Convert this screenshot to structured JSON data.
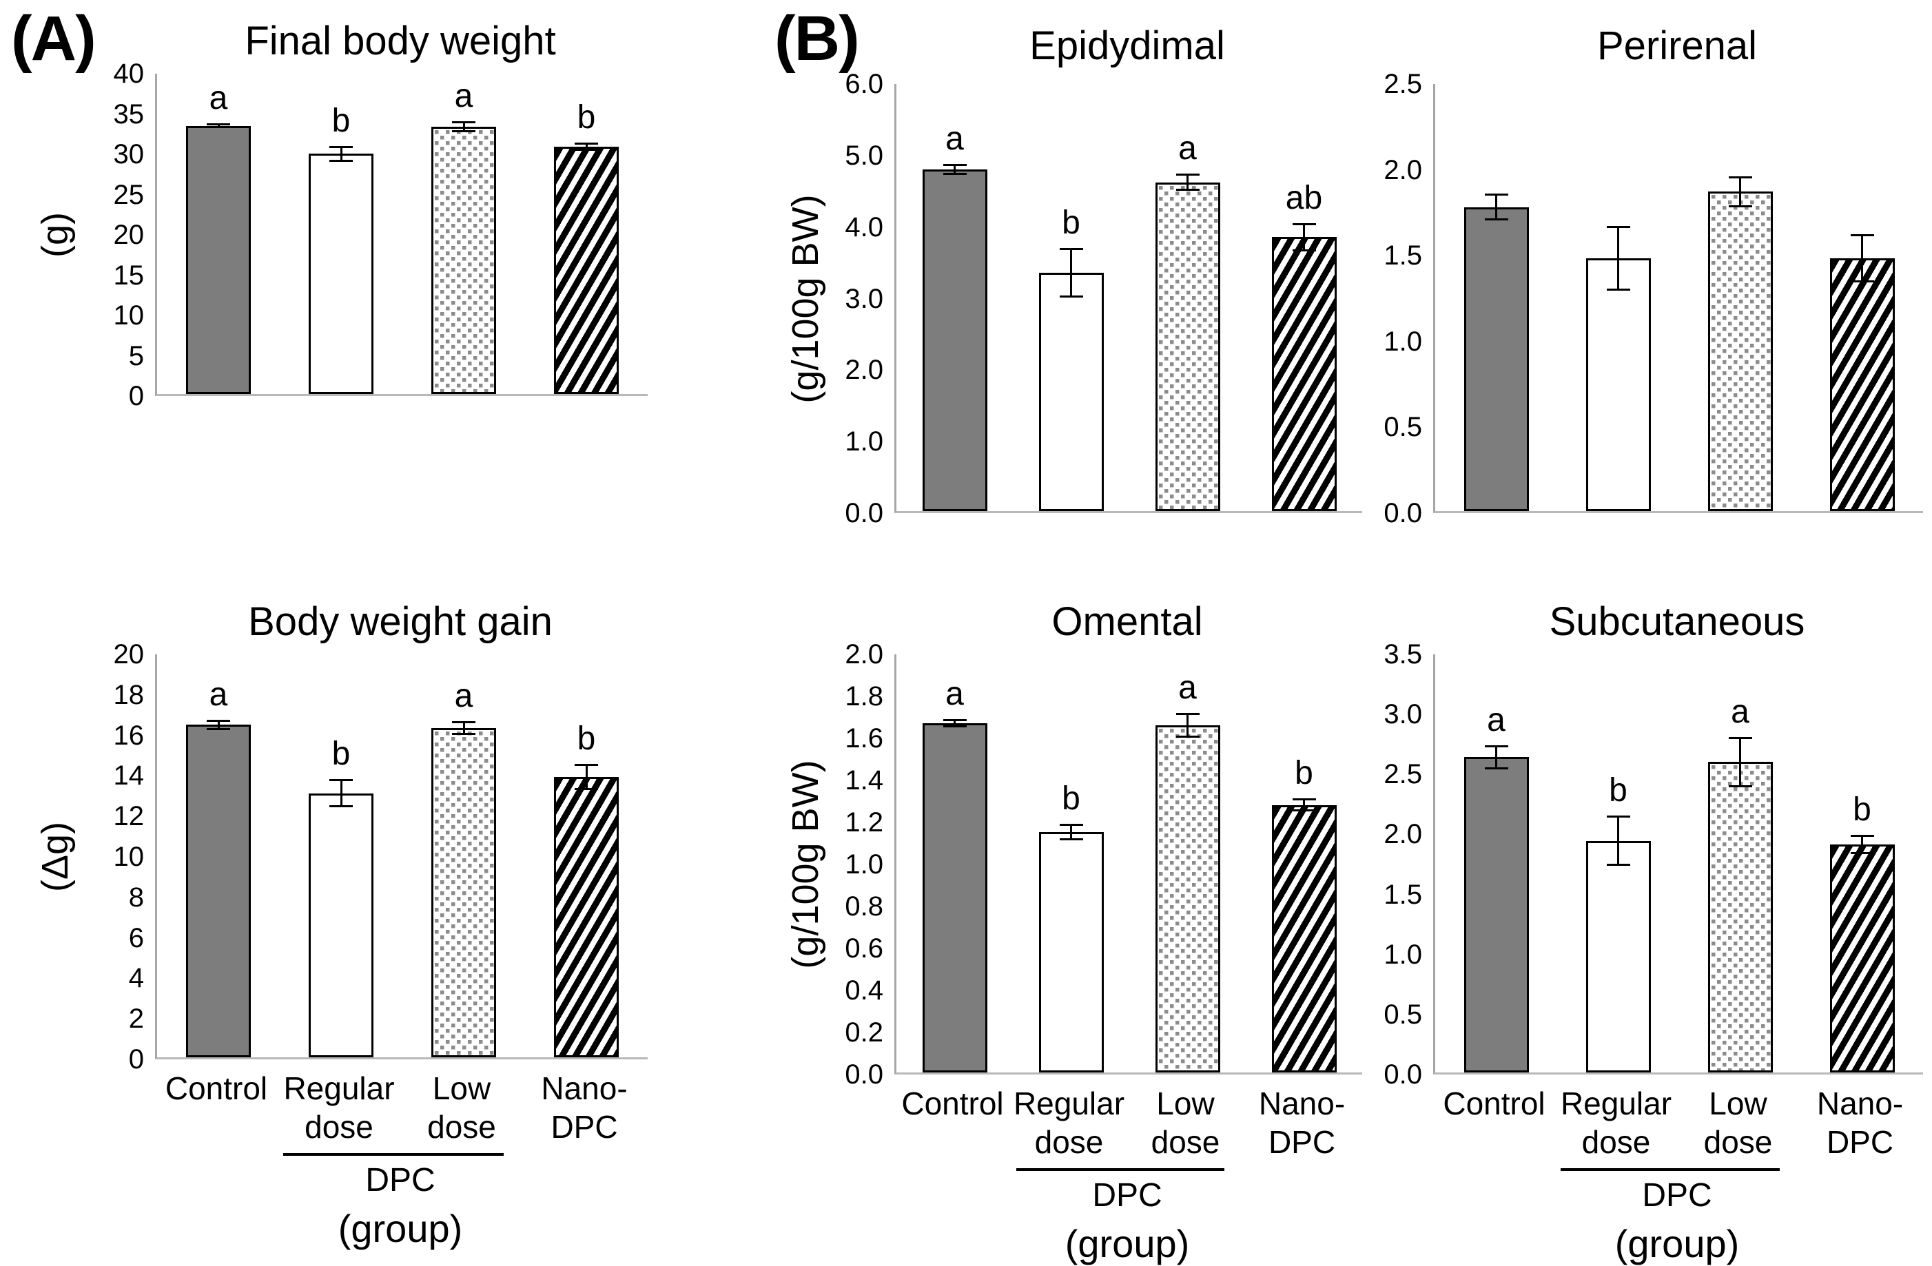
{
  "panels": {
    "a": "(A)",
    "b": "(B)"
  },
  "colors": {
    "bar_gray": "#7d7d7d",
    "dot_gray": "#8c8c8c",
    "stripe_black": "#000000",
    "bar_border": "#000000",
    "axis_line": "#a6a6a6",
    "baseline": "#b8b8b8",
    "text": "#000000"
  },
  "x_axis": {
    "series": [
      {
        "label_lines": [
          "Control"
        ],
        "style": "solid"
      },
      {
        "label_lines": [
          "Regular",
          "dose"
        ],
        "style": "white"
      },
      {
        "label_lines": [
          "Low",
          "dose"
        ],
        "style": "dots"
      },
      {
        "label_lines": [
          "Nano-",
          "DPC"
        ],
        "style": "stripes"
      }
    ],
    "group_bracket_label": "DPC",
    "group_axis_label": "(group)"
  },
  "chart_data": [
    {
      "id": "final-body-weight",
      "type": "bar",
      "title": "Final body weight",
      "ylabel": "(g)",
      "ymax": 40,
      "ytick_values": [
        40,
        35,
        30,
        25,
        20,
        15,
        10,
        5,
        0
      ],
      "ytick_labels": [
        "40",
        "35",
        "30",
        "25",
        "20",
        "15",
        "10",
        "5",
        "0"
      ],
      "show_x_labels": false,
      "categories": [
        "Control",
        "Regular dose",
        "Low dose",
        "Nano-DPC"
      ],
      "bars": [
        {
          "category": "Control",
          "value": 33.5,
          "error": 0.3,
          "letter": "a"
        },
        {
          "category": "Regular dose",
          "value": 30.0,
          "error": 1.0,
          "letter": "b"
        },
        {
          "category": "Low dose",
          "value": 33.4,
          "error": 0.7,
          "letter": "a"
        },
        {
          "category": "Nano-DPC",
          "value": 30.9,
          "error": 0.5,
          "letter": "b"
        }
      ]
    },
    {
      "id": "body-weight-gain",
      "type": "bar",
      "title": "Body weight gain",
      "ylabel": "(Δg)",
      "ymax": 20,
      "ytick_values": [
        20,
        18,
        16,
        14,
        12,
        10,
        8,
        6,
        4,
        2,
        0
      ],
      "ytick_labels": [
        "20",
        "18",
        "16",
        "14",
        "12",
        "10",
        "8",
        "6",
        "4",
        "2",
        "0"
      ],
      "show_x_labels": true,
      "categories": [
        "Control",
        "Regular dose",
        "Low dose",
        "Nano-DPC"
      ],
      "bars": [
        {
          "category": "Control",
          "value": 16.5,
          "error": 0.25,
          "letter": "a"
        },
        {
          "category": "Regular dose",
          "value": 13.1,
          "error": 0.7,
          "letter": "b"
        },
        {
          "category": "Low dose",
          "value": 16.35,
          "error": 0.35,
          "letter": "a"
        },
        {
          "category": "Nano-DPC",
          "value": 13.9,
          "error": 0.65,
          "letter": "b"
        }
      ]
    },
    {
      "id": "epidydimal",
      "type": "bar",
      "title": "Epidydimal",
      "ylabel": "(g/100g BW)",
      "ymax": 6,
      "ytick_values": [
        6,
        5,
        4,
        3,
        2,
        1,
        0
      ],
      "ytick_labels": [
        "6.0",
        "5.0",
        "4.0",
        "3.0",
        "2.0",
        "1.0",
        "0.0"
      ],
      "show_x_labels": false,
      "categories": [
        "Control",
        "Regular dose",
        "Low dose",
        "Nano-DPC"
      ],
      "bars": [
        {
          "category": "Control",
          "value": 4.8,
          "error": 0.08,
          "letter": "a"
        },
        {
          "category": "Regular dose",
          "value": 3.35,
          "error": 0.35,
          "letter": "b"
        },
        {
          "category": "Low dose",
          "value": 4.62,
          "error": 0.12,
          "letter": "a"
        },
        {
          "category": "Nano-DPC",
          "value": 3.85,
          "error": 0.2,
          "letter": "ab"
        }
      ]
    },
    {
      "id": "perirenal",
      "type": "bar",
      "title": "Perirenal",
      "ylabel": "",
      "ymax": 2.5,
      "ytick_values": [
        2.5,
        2.0,
        1.5,
        1.0,
        0.5,
        0
      ],
      "ytick_labels": [
        "2.5",
        "2.0",
        "1.5",
        "1.0",
        "0.5",
        "0.0"
      ],
      "show_x_labels": false,
      "categories": [
        "Control",
        "Regular dose",
        "Low dose",
        "Nano-DPC"
      ],
      "bars": [
        {
          "category": "Control",
          "value": 1.78,
          "error": 0.08,
          "letter": ""
        },
        {
          "category": "Regular dose",
          "value": 1.48,
          "error": 0.19,
          "letter": ""
        },
        {
          "category": "Low dose",
          "value": 1.87,
          "error": 0.09,
          "letter": ""
        },
        {
          "category": "Nano-DPC",
          "value": 1.48,
          "error": 0.14,
          "letter": ""
        }
      ]
    },
    {
      "id": "omental",
      "type": "bar",
      "title": "Omental",
      "ylabel": "(g/100g BW)",
      "ymax": 2,
      "ytick_values": [
        2.0,
        1.8,
        1.6,
        1.4,
        1.2,
        1.0,
        0.8,
        0.6,
        0.4,
        0.2,
        0
      ],
      "ytick_labels": [
        "2.0",
        "1.8",
        "1.6",
        "1.4",
        "1.2",
        "1.0",
        "0.8",
        "0.6",
        "0.4",
        "0.2",
        "0.0"
      ],
      "show_x_labels": true,
      "categories": [
        "Control",
        "Regular dose",
        "Low dose",
        "Nano-DPC"
      ],
      "bars": [
        {
          "category": "Control",
          "value": 1.67,
          "error": 0.02,
          "letter": "a"
        },
        {
          "category": "Regular dose",
          "value": 1.15,
          "error": 0.04,
          "letter": "b"
        },
        {
          "category": "Low dose",
          "value": 1.66,
          "error": 0.06,
          "letter": "a"
        },
        {
          "category": "Nano-DPC",
          "value": 1.28,
          "error": 0.03,
          "letter": "b"
        }
      ]
    },
    {
      "id": "subcutaneous",
      "type": "bar",
      "title": "Subcutaneous",
      "ylabel": "",
      "ymax": 3.5,
      "ytick_values": [
        3.5,
        3.0,
        2.5,
        2.0,
        1.5,
        1.0,
        0.5,
        0
      ],
      "ytick_labels": [
        "3.5",
        "3.0",
        "2.5",
        "2.0",
        "1.5",
        "1.0",
        "0.5",
        "0.0"
      ],
      "show_x_labels": true,
      "categories": [
        "Control",
        "Regular dose",
        "Low dose",
        "Nano-DPC"
      ],
      "bars": [
        {
          "category": "Control",
          "value": 2.64,
          "error": 0.1,
          "letter": "a"
        },
        {
          "category": "Regular dose",
          "value": 1.94,
          "error": 0.21,
          "letter": "b"
        },
        {
          "category": "Low dose",
          "value": 2.6,
          "error": 0.21,
          "letter": "a"
        },
        {
          "category": "Nano-DPC",
          "value": 1.91,
          "error": 0.08,
          "letter": "b"
        }
      ]
    }
  ]
}
